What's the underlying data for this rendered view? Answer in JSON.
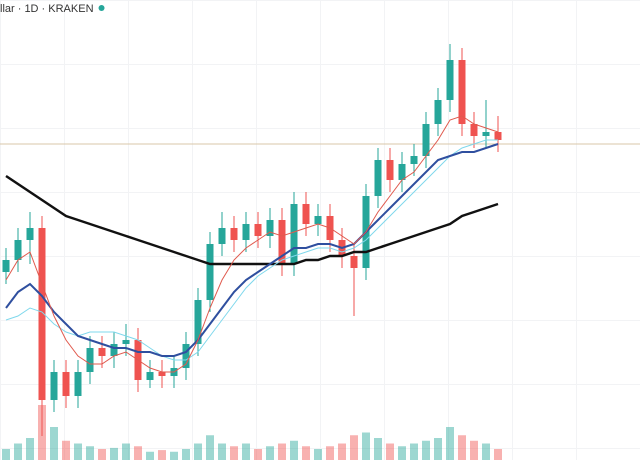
{
  "chart_data": {
    "type": "candlestick",
    "title": "llar · 1D · KRAKEN",
    "ylim": [
      0,
      115
    ],
    "up_color": "#26a69a",
    "down_color": "#ef5350",
    "open": [
      47,
      50,
      55,
      58,
      15,
      22,
      16,
      22,
      28,
      26,
      29,
      30,
      20,
      22,
      21,
      23,
      29,
      40,
      54,
      58,
      55,
      59,
      56,
      60,
      49,
      64,
      59,
      61,
      55,
      51,
      48,
      66,
      75,
      70,
      74,
      76,
      84,
      90,
      100,
      84,
      81,
      82
    ],
    "high": [
      53,
      58,
      62,
      61,
      25,
      25,
      25,
      31,
      31,
      32,
      34,
      33,
      25,
      25,
      26,
      32,
      43,
      57,
      62,
      61,
      62,
      62,
      63,
      63,
      67,
      67,
      64,
      64,
      58,
      54,
      69,
      78,
      78,
      77,
      79,
      87,
      93,
      104,
      103,
      87,
      90,
      86
    ],
    "low": [
      44,
      47,
      49,
      6,
      12,
      13,
      13,
      19,
      23,
      23,
      26,
      17,
      18,
      18,
      18,
      20,
      26,
      37,
      51,
      52,
      52,
      53,
      53,
      46,
      46,
      56,
      56,
      52,
      48,
      36,
      45,
      63,
      67,
      67,
      71,
      73,
      81,
      87,
      81,
      78,
      78,
      77
    ],
    "close": [
      50,
      55,
      58,
      15,
      22,
      16,
      22,
      28,
      26,
      29,
      30,
      20,
      22,
      21,
      23,
      29,
      40,
      54,
      58,
      55,
      59,
      56,
      60,
      49,
      64,
      59,
      61,
      55,
      51,
      48,
      66,
      75,
      70,
      74,
      76,
      84,
      90,
      100,
      84,
      81,
      82,
      80
    ],
    "moving_averages": [
      {
        "color": "#111111",
        "width": 2.5,
        "values": [
          71,
          69,
          67,
          65,
          63,
          61,
          60,
          59,
          58,
          57,
          56,
          55,
          54,
          53,
          52,
          51,
          50,
          49,
          49,
          49,
          49,
          49,
          49,
          49,
          49,
          50,
          50,
          51,
          51,
          52,
          52,
          53,
          54,
          55,
          56,
          57,
          58,
          59,
          61,
          62,
          63,
          64
        ]
      },
      {
        "color": "#7fd8ec",
        "width": 1,
        "values": [
          35,
          36,
          38,
          37,
          34,
          32,
          31,
          32,
          32,
          32,
          31,
          30,
          28,
          26,
          25,
          25,
          27,
          31,
          35,
          39,
          43,
          46,
          48,
          50,
          51,
          52,
          53,
          53,
          52,
          53,
          55,
          58,
          61,
          64,
          67,
          70,
          73,
          76,
          78,
          79,
          80,
          80
        ]
      },
      {
        "color": "#2f4f9f",
        "width": 2,
        "values": [
          38,
          42,
          44,
          41,
          37,
          34,
          31,
          30,
          29,
          28,
          28,
          27,
          27,
          26,
          26,
          27,
          30,
          34,
          38,
          42,
          45,
          47,
          49,
          51,
          53,
          53,
          54,
          54,
          53,
          54,
          57,
          60,
          63,
          66,
          69,
          72,
          75,
          76,
          77,
          77,
          78,
          79
        ]
      },
      {
        "color": "#e05a4e",
        "width": 1,
        "values": [
          45,
          50,
          52,
          44,
          36,
          30,
          26,
          24,
          24,
          26,
          27,
          25,
          23,
          22,
          22,
          24,
          30,
          38,
          45,
          50,
          53,
          55,
          57,
          56,
          57,
          58,
          59,
          58,
          56,
          54,
          57,
          62,
          66,
          70,
          72,
          76,
          80,
          85,
          86,
          84,
          83,
          82
        ]
      }
    ],
    "volume": [
      20,
      30,
      40,
      100,
      60,
      35,
      30,
      25,
      20,
      22,
      30,
      25,
      15,
      18,
      15,
      20,
      30,
      45,
      30,
      25,
      30,
      20,
      25,
      30,
      35,
      25,
      20,
      25,
      30,
      45,
      50,
      40,
      30,
      25,
      30,
      35,
      40,
      60,
      45,
      35,
      30,
      20
    ],
    "volume_ylim": [
      0,
      100
    ],
    "price_line": 79,
    "price_line_color": "#d9c7a8"
  }
}
